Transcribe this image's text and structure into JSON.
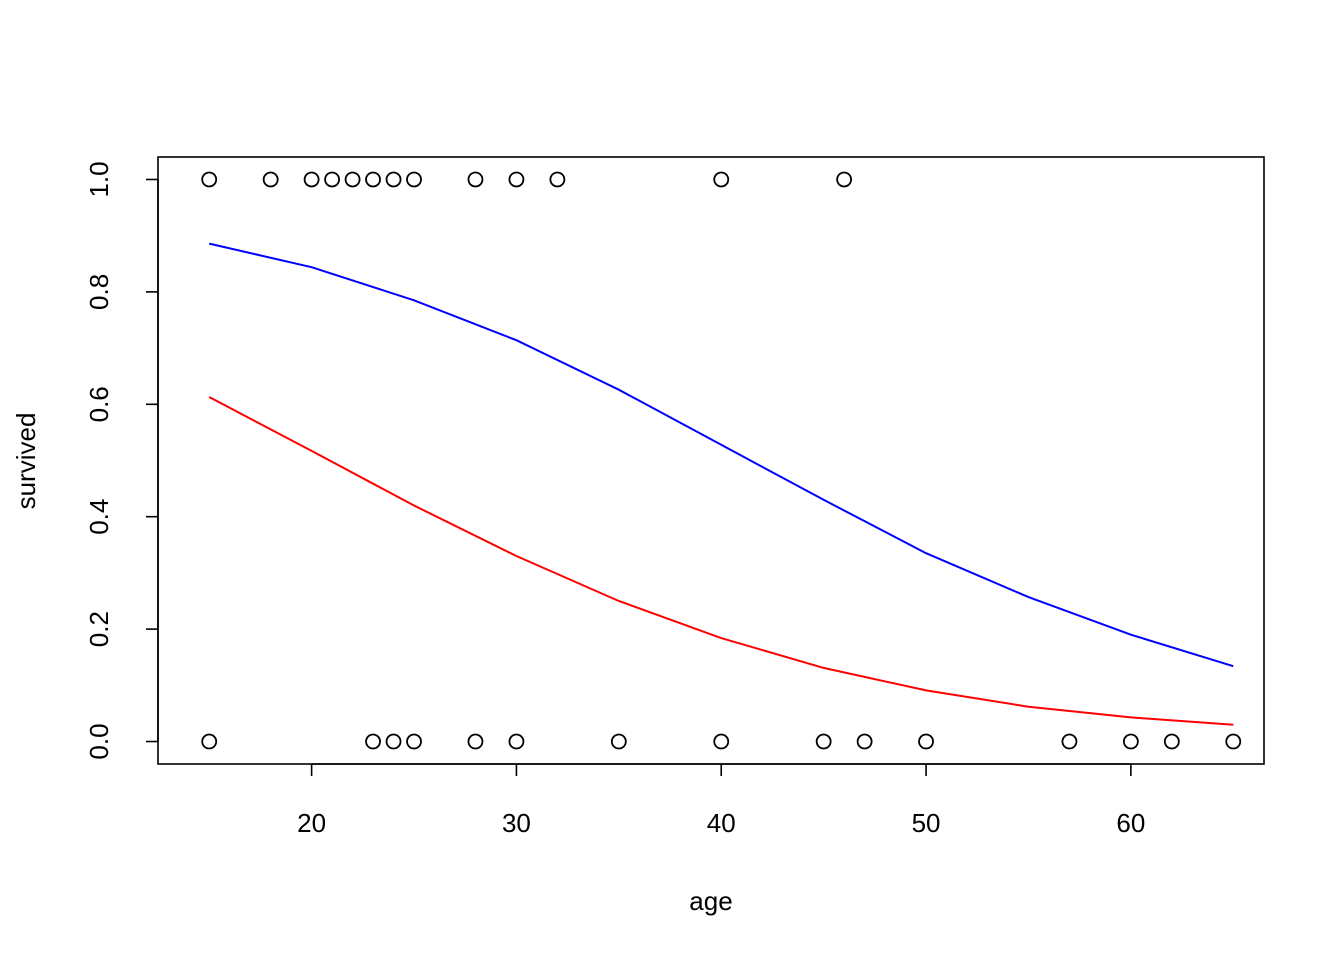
{
  "chart_data": {
    "type": "scatter",
    "title": "",
    "xlabel": "age",
    "ylabel": "survived",
    "xlim": [
      12.5,
      66.5
    ],
    "ylim": [
      -0.04,
      1.04
    ],
    "x_ticks": [
      20,
      30,
      40,
      50,
      60
    ],
    "y_ticks": [
      0.0,
      0.2,
      0.4,
      0.6,
      0.8,
      1.0
    ],
    "y_tick_labels": [
      "0.0",
      "0.2",
      "0.4",
      "0.6",
      "0.8",
      "1.0"
    ],
    "grid": false,
    "points": [
      {
        "x": 15,
        "y": 1
      },
      {
        "x": 18,
        "y": 1
      },
      {
        "x": 20,
        "y": 1
      },
      {
        "x": 21,
        "y": 1
      },
      {
        "x": 22,
        "y": 1
      },
      {
        "x": 23,
        "y": 1
      },
      {
        "x": 24,
        "y": 1
      },
      {
        "x": 25,
        "y": 1
      },
      {
        "x": 28,
        "y": 1
      },
      {
        "x": 30,
        "y": 1
      },
      {
        "x": 32,
        "y": 1
      },
      {
        "x": 40,
        "y": 1
      },
      {
        "x": 46,
        "y": 1
      },
      {
        "x": 15,
        "y": 0
      },
      {
        "x": 23,
        "y": 0
      },
      {
        "x": 24,
        "y": 0
      },
      {
        "x": 25,
        "y": 0
      },
      {
        "x": 28,
        "y": 0
      },
      {
        "x": 30,
        "y": 0
      },
      {
        "x": 35,
        "y": 0
      },
      {
        "x": 40,
        "y": 0
      },
      {
        "x": 45,
        "y": 0
      },
      {
        "x": 47,
        "y": 0
      },
      {
        "x": 50,
        "y": 0
      },
      {
        "x": 57,
        "y": 0
      },
      {
        "x": 60,
        "y": 0
      },
      {
        "x": 62,
        "y": 0
      },
      {
        "x": 65,
        "y": 0
      }
    ],
    "series": [
      {
        "color": "#0000ff",
        "x": [
          15,
          20,
          25,
          30,
          35,
          40,
          45,
          50,
          55,
          60,
          65
        ],
        "values": [
          0.886,
          0.844,
          0.785,
          0.714,
          0.626,
          0.528,
          0.43,
          0.335,
          0.257,
          0.19,
          0.134
        ]
      },
      {
        "color": "#ff0000",
        "x": [
          15,
          20,
          25,
          30,
          35,
          40,
          45,
          50,
          55,
          60,
          65
        ],
        "values": [
          0.613,
          0.517,
          0.42,
          0.33,
          0.25,
          0.184,
          0.131,
          0.091,
          0.062,
          0.043,
          0.03
        ]
      }
    ]
  }
}
